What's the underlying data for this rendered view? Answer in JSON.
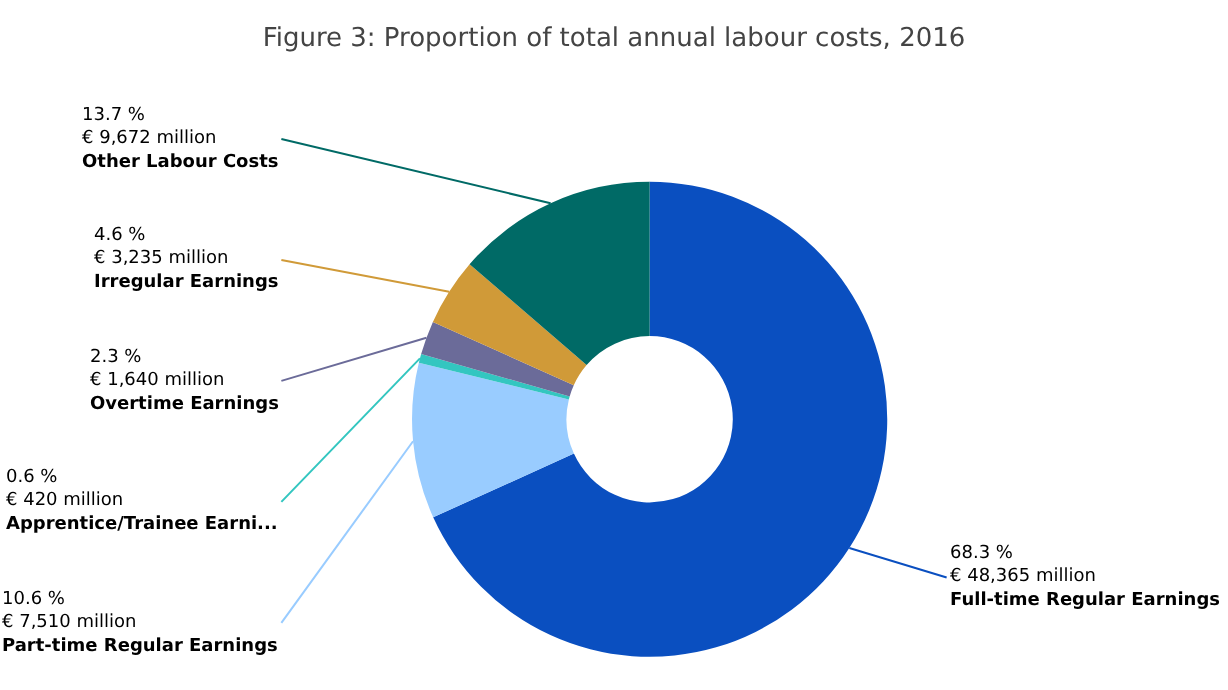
{
  "chart_data": {
    "type": "donut",
    "title": "Figure 3: Proportion of total annual labour costs, 2016",
    "categories": [
      "Full-time Regular Earnings",
      "Part-time Regular Earnings",
      "Apprentice/Trainee Earni...",
      "Overtime Earnings",
      "Irregular Earnings",
      "Other Labour Costs"
    ],
    "values": [
      68.3,
      10.6,
      0.6,
      2.3,
      4.6,
      13.7
    ],
    "value_labels": [
      "68.3 %\n€ 48,365 million",
      "10.6 %\n€ 7,510 million",
      "0.6 %\n€ 420 million",
      "2.3 %\n€ 1,640 million",
      "4.6 %\n€ 3,235 million",
      "13.7 %\n€ 9,672 million"
    ],
    "colors": [
      "#0a4fc0",
      "#99ccff",
      "#33c6c0",
      "#6b6b99",
      "#d09a38",
      "#006a66"
    ],
    "legend": false
  }
}
